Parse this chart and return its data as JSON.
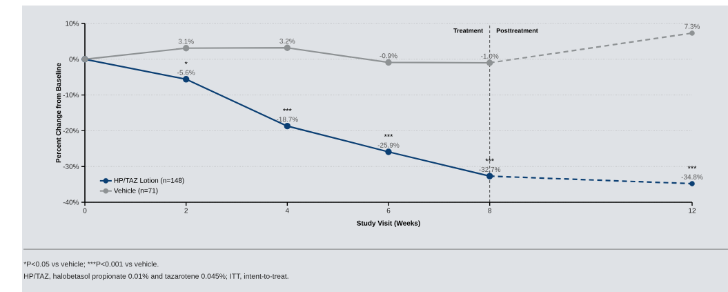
{
  "chart_data": {
    "type": "line",
    "xlabel": "Study Visit (Weeks)",
    "ylabel": "Percent Change from Baseline",
    "x": [
      0,
      2,
      4,
      6,
      8,
      12
    ],
    "series": [
      {
        "name": "HP/TAZ Lotion (n=148)",
        "color": "#0b3f73",
        "values": [
          0,
          -5.6,
          -18.7,
          -25.9,
          -32.7,
          -34.8
        ],
        "value_labels": [
          null,
          "-5.6%",
          "-18.7%",
          "-25.9%",
          "-32.7%",
          "-34.8%"
        ]
      },
      {
        "name": "Vehicle (n=71)",
        "color": "#8e9294",
        "values": [
          0,
          3.1,
          3.2,
          -0.9,
          -1.0,
          7.3
        ],
        "value_labels": [
          null,
          "3.1%",
          "3.2%",
          "-0.9%",
          "-1.0%",
          "7.3%"
        ]
      }
    ],
    "xlim": [
      0,
      12
    ],
    "ylim": [
      -40,
      10
    ],
    "xticks": [
      0,
      2,
      4,
      6,
      8,
      12
    ],
    "yticks": [
      {
        "value": 10,
        "label": "10%"
      },
      {
        "value": 0,
        "label": "0%"
      },
      {
        "value": -10,
        "label": "-10%"
      },
      {
        "value": -20,
        "label": "-20%"
      },
      {
        "value": -30,
        "label": "-30%"
      },
      {
        "value": -40,
        "label": "-40%"
      }
    ],
    "grid": "y",
    "legend": "bottom left",
    "marker": "circle",
    "line_style": "solid",
    "ref_lines": [
      {
        "axis": "x",
        "value": 8,
        "line_style": "dashed",
        "color": "#222222"
      }
    ],
    "annotations": [
      {
        "text": "Treatment",
        "x": 8,
        "y": 8
      },
      {
        "text": "Posttreatment",
        "x": 8,
        "y": 8
      },
      {
        "text": "*",
        "x": 2,
        "y": -5.6
      },
      {
        "text": "***",
        "x": 4,
        "y": -18.7
      },
      {
        "text": "***",
        "x": 6,
        "y": -25.9
      },
      {
        "text": "***",
        "x": 8,
        "y": -32.7
      },
      {
        "text": "***",
        "x": 12,
        "y": -34.8
      },
      "*P<0.05 vs vehicle; ***P<0.001 vs vehicle.",
      "HP/TAZ, halobetasol propionate 0.01% and tazarotene 0.045%; ITT, intent-to-treat."
    ]
  }
}
